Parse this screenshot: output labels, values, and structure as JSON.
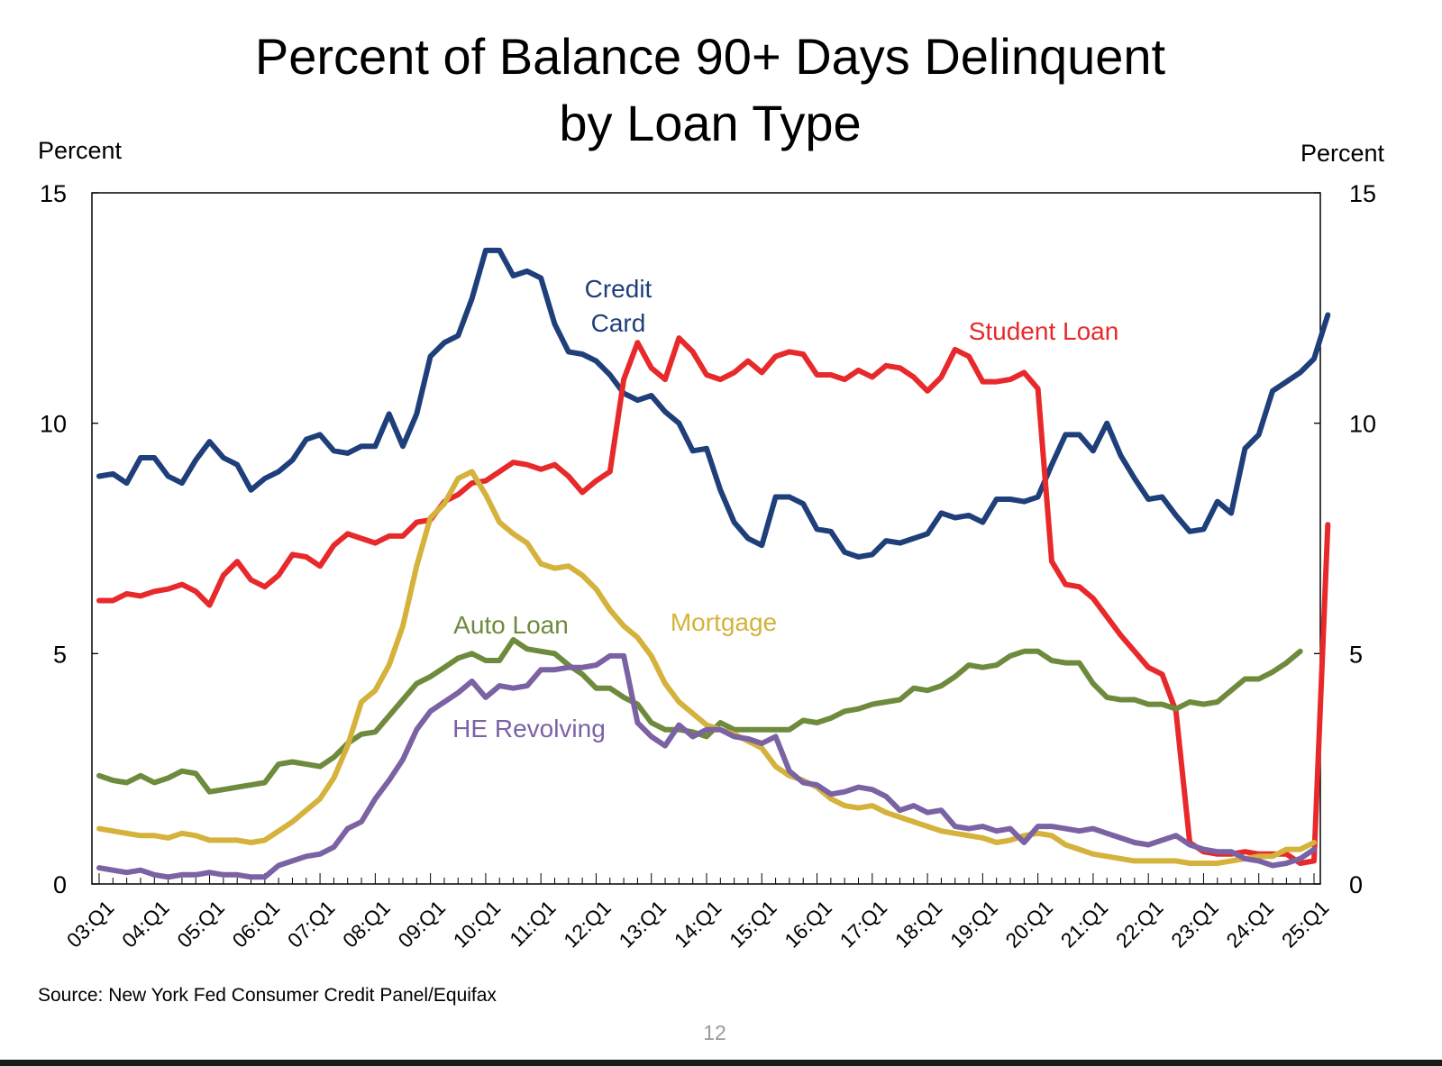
{
  "chart_data": {
    "type": "line",
    "title": "Percent of Balance 90+ Days Delinquent",
    "subtitle": "by Loan Type",
    "ylabel_left": "Percent",
    "ylabel_right": "Percent",
    "ylim": [
      0,
      15
    ],
    "yticks": [
      "0",
      "5",
      "10",
      "15"
    ],
    "x_tick_labels": [
      "03:Q1",
      "04:Q1",
      "05:Q1",
      "06:Q1",
      "07:Q1",
      "08:Q1",
      "09:Q1",
      "10:Q1",
      "11:Q1",
      "12:Q1",
      "13:Q1",
      "14:Q1",
      "15:Q1",
      "16:Q1",
      "17:Q1",
      "18:Q1",
      "19:Q1",
      "20:Q1",
      "21:Q1",
      "22:Q1",
      "23:Q1",
      "24:Q1",
      "25:Q1"
    ],
    "x_start": "03:Q1",
    "x_end": "25:Q1",
    "grid": false,
    "source": "Source: New York Fed Consumer Credit Panel/Equifax",
    "series": [
      {
        "name": "Credit Card",
        "label_lines": [
          "Credit",
          "Card"
        ],
        "color": "#1f3f7a",
        "values": [
          8.85,
          8.9,
          8.7,
          9.25,
          9.25,
          8.85,
          8.7,
          9.2,
          9.6,
          9.25,
          9.1,
          8.55,
          8.8,
          8.95,
          9.2,
          9.65,
          9.75,
          9.4,
          9.35,
          9.5,
          9.5,
          10.2,
          9.5,
          10.2,
          11.45,
          11.75,
          11.9,
          12.7,
          13.75,
          13.75,
          13.2,
          13.3,
          13.15,
          12.15,
          11.55,
          11.5,
          11.35,
          11.05,
          10.65,
          10.5,
          10.6,
          10.25,
          10.0,
          9.4,
          9.45,
          8.55,
          7.85,
          7.5,
          7.35,
          8.4,
          8.4,
          8.25,
          7.7,
          7.65,
          7.2,
          7.1,
          7.15,
          7.45,
          7.4,
          7.5,
          7.6,
          8.05,
          7.95,
          8.0,
          7.85,
          8.35,
          8.35,
          8.3,
          8.4,
          9.1,
          9.75,
          9.75,
          9.4,
          10.0,
          9.3,
          8.8,
          8.35,
          8.4,
          8.0,
          7.65,
          7.7,
          8.3,
          8.05,
          9.45,
          9.75,
          10.7,
          10.9,
          11.1,
          11.4,
          12.35
        ]
      },
      {
        "name": "Student Loan",
        "label_lines": [
          "Student Loan"
        ],
        "color": "#e8292b",
        "values": [
          6.15,
          6.15,
          6.3,
          6.25,
          6.35,
          6.4,
          6.5,
          6.35,
          6.05,
          6.7,
          7.0,
          6.6,
          6.45,
          6.7,
          7.15,
          7.1,
          6.9,
          7.35,
          7.6,
          7.5,
          7.4,
          7.55,
          7.55,
          7.85,
          7.9,
          8.3,
          8.45,
          8.7,
          8.75,
          8.95,
          9.15,
          9.1,
          9.0,
          9.1,
          8.85,
          8.5,
          8.75,
          8.95,
          10.95,
          11.75,
          11.2,
          10.95,
          11.85,
          11.55,
          11.05,
          10.95,
          11.1,
          11.35,
          11.1,
          11.45,
          11.55,
          11.5,
          11.05,
          11.05,
          10.95,
          11.15,
          11.0,
          11.25,
          11.2,
          11.0,
          10.7,
          11.0,
          11.6,
          11.45,
          10.9,
          10.9,
          10.95,
          11.1,
          10.75,
          7.0,
          6.5,
          6.45,
          6.2,
          5.8,
          5.4,
          5.05,
          4.7,
          4.55,
          3.75,
          0.9,
          0.7,
          0.65,
          0.65,
          0.7,
          0.65,
          0.65,
          0.65,
          0.45,
          0.5,
          7.8
        ]
      },
      {
        "name": "Auto Loan",
        "label_lines": [
          "Auto Loan"
        ],
        "color": "#6e8b3d",
        "values": [
          2.35,
          2.25,
          2.2,
          2.35,
          2.2,
          2.3,
          2.45,
          2.4,
          2.0,
          2.05,
          2.1,
          2.15,
          2.2,
          2.6,
          2.65,
          2.6,
          2.55,
          2.75,
          3.05,
          3.25,
          3.3,
          3.65,
          4.0,
          4.35,
          4.5,
          4.7,
          4.9,
          5.0,
          4.85,
          4.85,
          5.3,
          5.1,
          5.05,
          5.0,
          4.75,
          4.55,
          4.25,
          4.25,
          4.05,
          3.9,
          3.5,
          3.35,
          3.35,
          3.3,
          3.2,
          3.5,
          3.35,
          3.35,
          3.35,
          3.35,
          3.35,
          3.55,
          3.5,
          3.6,
          3.75,
          3.8,
          3.9,
          3.95,
          4.0,
          4.25,
          4.2,
          4.3,
          4.5,
          4.75,
          4.7,
          4.75,
          4.95,
          5.05,
          5.05,
          4.85,
          4.8,
          4.8,
          4.35,
          4.05,
          4.0,
          4.0,
          3.9,
          3.9,
          3.8,
          3.95,
          3.9,
          3.95,
          4.2,
          4.45,
          4.45,
          4.6,
          4.8,
          5.05
        ]
      },
      {
        "name": "Mortgage",
        "label_lines": [
          "Mortgage"
        ],
        "color": "#d4b23c",
        "values": [
          1.2,
          1.15,
          1.1,
          1.05,
          1.05,
          1.0,
          1.1,
          1.05,
          0.95,
          0.95,
          0.95,
          0.9,
          0.95,
          1.15,
          1.35,
          1.6,
          1.85,
          2.3,
          3.0,
          3.95,
          4.2,
          4.75,
          5.6,
          6.9,
          7.95,
          8.25,
          8.8,
          8.95,
          8.45,
          7.85,
          7.6,
          7.4,
          6.95,
          6.85,
          6.9,
          6.7,
          6.4,
          5.95,
          5.6,
          5.35,
          4.95,
          4.35,
          3.95,
          3.7,
          3.45,
          3.35,
          3.25,
          3.1,
          2.95,
          2.55,
          2.35,
          2.25,
          2.1,
          1.85,
          1.7,
          1.65,
          1.7,
          1.55,
          1.45,
          1.35,
          1.25,
          1.15,
          1.1,
          1.05,
          1.0,
          0.9,
          0.95,
          1.05,
          1.1,
          1.05,
          0.85,
          0.75,
          0.65,
          0.6,
          0.55,
          0.5,
          0.5,
          0.5,
          0.5,
          0.45,
          0.45,
          0.45,
          0.5,
          0.55,
          0.6,
          0.6,
          0.75,
          0.75,
          0.9
        ]
      },
      {
        "name": "HE Revolving",
        "label_lines": [
          "HE Revolving"
        ],
        "color": "#7b62a3",
        "values": [
          0.35,
          0.3,
          0.25,
          0.3,
          0.2,
          0.15,
          0.2,
          0.2,
          0.25,
          0.2,
          0.2,
          0.15,
          0.15,
          0.4,
          0.5,
          0.6,
          0.65,
          0.8,
          1.2,
          1.35,
          1.85,
          2.25,
          2.7,
          3.35,
          3.75,
          3.95,
          4.15,
          4.4,
          4.05,
          4.3,
          4.25,
          4.3,
          4.65,
          4.65,
          4.7,
          4.7,
          4.75,
          4.95,
          4.95,
          3.5,
          3.2,
          3.0,
          3.45,
          3.2,
          3.35,
          3.35,
          3.2,
          3.15,
          3.05,
          3.2,
          2.45,
          2.2,
          2.15,
          1.95,
          2.0,
          2.1,
          2.05,
          1.9,
          1.6,
          1.7,
          1.55,
          1.6,
          1.25,
          1.2,
          1.25,
          1.15,
          1.2,
          0.9,
          1.25,
          1.25,
          1.2,
          1.15,
          1.2,
          1.1,
          1.0,
          0.9,
          0.85,
          0.95,
          1.05,
          0.85,
          0.75,
          0.7,
          0.7,
          0.55,
          0.5,
          0.4,
          0.45,
          0.55,
          0.75
        ]
      }
    ]
  },
  "page": {
    "number": "12"
  }
}
